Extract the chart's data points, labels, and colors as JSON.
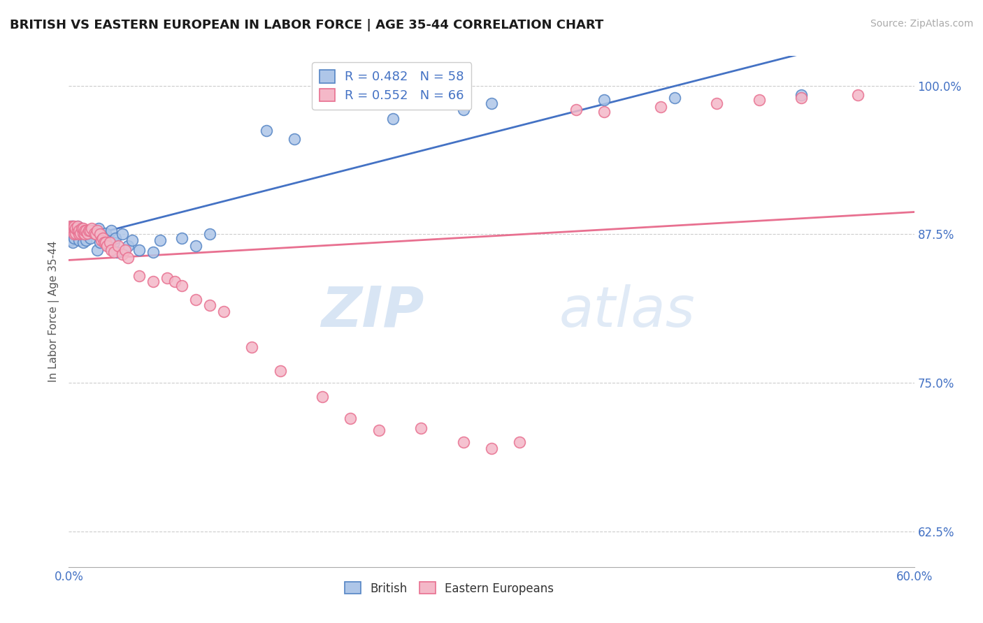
{
  "title": "BRITISH VS EASTERN EUROPEAN IN LABOR FORCE | AGE 35-44 CORRELATION CHART",
  "source": "Source: ZipAtlas.com",
  "ylabel": "In Labor Force | Age 35-44",
  "xlim": [
    0.0,
    0.6
  ],
  "ylim": [
    0.595,
    1.025
  ],
  "yticks": [
    0.625,
    0.75,
    0.875,
    1.0
  ],
  "ytick_labels": [
    "62.5%",
    "75.0%",
    "87.5%",
    "100.0%"
  ],
  "xtick_left_label": "0.0%",
  "xtick_right_label": "60.0%",
  "title_color": "#1a1a1a",
  "axis_color": "#4472c4",
  "grid_color": "#cccccc",
  "watermark_zip": "ZIP",
  "watermark_atlas": "atlas",
  "british_color": "#aec6e8",
  "british_edge_color": "#5585c5",
  "eastern_color": "#f4b8c8",
  "eastern_edge_color": "#e87090",
  "british_line_color": "#4472c4",
  "eastern_line_color": "#e87090",
  "british_R": 0.482,
  "british_N": 58,
  "eastern_R": 0.552,
  "eastern_N": 66,
  "legend_british": "British",
  "legend_eastern": "Eastern Europeans",
  "british_x": [
    0.001,
    0.002,
    0.002,
    0.003,
    0.003,
    0.003,
    0.004,
    0.004,
    0.005,
    0.005,
    0.005,
    0.006,
    0.006,
    0.006,
    0.007,
    0.007,
    0.008,
    0.008,
    0.009,
    0.009,
    0.01,
    0.01,
    0.011,
    0.011,
    0.012,
    0.013,
    0.015,
    0.016,
    0.017,
    0.018,
    0.019,
    0.02,
    0.021,
    0.022,
    0.025,
    0.026,
    0.028,
    0.03,
    0.032,
    0.033,
    0.034,
    0.038,
    0.042,
    0.045,
    0.05,
    0.06,
    0.065,
    0.08,
    0.09,
    0.1,
    0.14,
    0.16,
    0.23,
    0.28,
    0.3,
    0.38,
    0.43,
    0.52
  ],
  "british_y": [
    0.88,
    0.882,
    0.87,
    0.882,
    0.875,
    0.868,
    0.878,
    0.872,
    0.878,
    0.875,
    0.88,
    0.876,
    0.878,
    0.882,
    0.87,
    0.876,
    0.88,
    0.878,
    0.878,
    0.88,
    0.875,
    0.868,
    0.876,
    0.875,
    0.87,
    0.875,
    0.872,
    0.878,
    0.878,
    0.878,
    0.875,
    0.862,
    0.88,
    0.868,
    0.875,
    0.876,
    0.865,
    0.878,
    0.868,
    0.872,
    0.86,
    0.875,
    0.865,
    0.87,
    0.862,
    0.86,
    0.87,
    0.872,
    0.865,
    0.875,
    0.962,
    0.955,
    0.972,
    0.98,
    0.985,
    0.988,
    0.99,
    0.992
  ],
  "eastern_x": [
    0.001,
    0.002,
    0.002,
    0.003,
    0.003,
    0.003,
    0.004,
    0.004,
    0.004,
    0.005,
    0.005,
    0.006,
    0.006,
    0.007,
    0.007,
    0.008,
    0.009,
    0.01,
    0.01,
    0.011,
    0.011,
    0.012,
    0.013,
    0.014,
    0.015,
    0.016,
    0.018,
    0.019,
    0.02,
    0.022,
    0.023,
    0.024,
    0.025,
    0.026,
    0.027,
    0.029,
    0.03,
    0.032,
    0.035,
    0.038,
    0.04,
    0.042,
    0.05,
    0.06,
    0.07,
    0.075,
    0.08,
    0.09,
    0.1,
    0.11,
    0.13,
    0.15,
    0.18,
    0.2,
    0.22,
    0.25,
    0.28,
    0.3,
    0.32,
    0.36,
    0.38,
    0.42,
    0.46,
    0.49,
    0.52,
    0.56
  ],
  "eastern_y": [
    0.882,
    0.878,
    0.88,
    0.878,
    0.882,
    0.88,
    0.88,
    0.875,
    0.882,
    0.876,
    0.88,
    0.878,
    0.882,
    0.875,
    0.878,
    0.876,
    0.88,
    0.876,
    0.88,
    0.875,
    0.878,
    0.878,
    0.876,
    0.878,
    0.878,
    0.88,
    0.876,
    0.875,
    0.878,
    0.875,
    0.87,
    0.872,
    0.868,
    0.868,
    0.865,
    0.868,
    0.862,
    0.86,
    0.865,
    0.858,
    0.862,
    0.855,
    0.84,
    0.835,
    0.838,
    0.835,
    0.832,
    0.82,
    0.815,
    0.81,
    0.78,
    0.76,
    0.738,
    0.72,
    0.71,
    0.712,
    0.7,
    0.695,
    0.7,
    0.98,
    0.978,
    0.982,
    0.985,
    0.988,
    0.99,
    0.992
  ]
}
